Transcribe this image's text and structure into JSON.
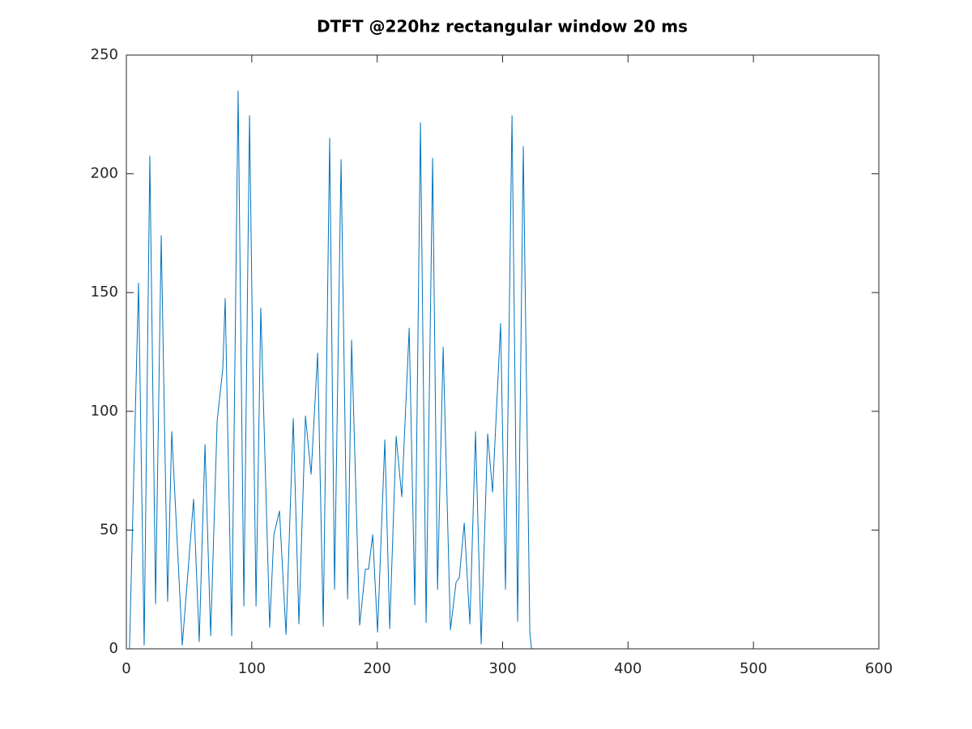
{
  "chart_data": {
    "type": "line",
    "title": "DTFT @220hz rectangular window 20 ms",
    "x": [
      0,
      2.5,
      9.7,
      14.2,
      18.7,
      23.3,
      27.8,
      32.9,
      36.2,
      44.6,
      53.6,
      58.1,
      62.7,
      67.2,
      72.4,
      76.9,
      78.8,
      84,
      89.1,
      93.7,
      98.2,
      103.4,
      107.2,
      114.3,
      117.6,
      122.1,
      127.3,
      133.1,
      137.6,
      142.8,
      147.3,
      152.5,
      157,
      162.1,
      166,
      171.2,
      176.4,
      179.6,
      186,
      190.6,
      193.1,
      196.4,
      200.3,
      206.1,
      210,
      215.1,
      219.6,
      225.5,
      230,
      234.5,
      239,
      244.2,
      248.1,
      252.6,
      258.4,
      262.9,
      265.5,
      269.4,
      273.9,
      278.4,
      282.9,
      288.1,
      292,
      298.4,
      302.3,
      307.5,
      312,
      316.5,
      321.7,
      323,
      599
    ],
    "series": [
      {
        "color": "#0072bd",
        "values": [
          0,
          0,
          154,
          1.5,
          207.5,
          19,
          174,
          20,
          91.5,
          1.5,
          63,
          3,
          86,
          5.5,
          96,
          118,
          147.5,
          5.5,
          235,
          18,
          224.5,
          18,
          143.5,
          9,
          48,
          58,
          6,
          97,
          10.5,
          98,
          73.5,
          124.5,
          9.5,
          215,
          25,
          206,
          21,
          130,
          10,
          33.5,
          33.5,
          48,
          7,
          88,
          8.5,
          89.5,
          64,
          135,
          18.5,
          221.5,
          11,
          206.5,
          25,
          127,
          8,
          28,
          30,
          53,
          10.5,
          91.5,
          2,
          90.5,
          66,
          137,
          25,
          224.5,
          11.5,
          211.5,
          7,
          0,
          0
        ]
      }
    ],
    "xlim": [
      0,
      600
    ],
    "xticks": [
      0,
      100,
      200,
      300,
      400,
      500,
      600
    ],
    "ylim": [
      0,
      250
    ],
    "yticks": [
      0,
      50,
      100,
      150,
      200,
      250
    ]
  }
}
